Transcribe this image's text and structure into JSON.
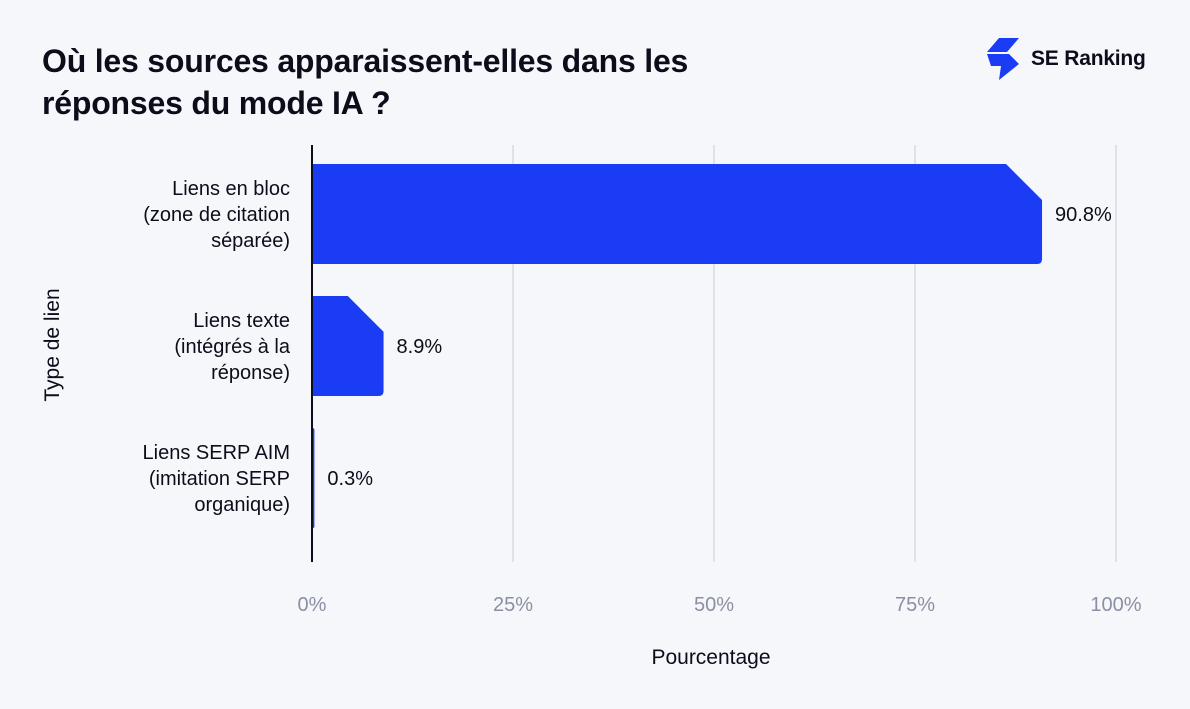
{
  "title": "Où les sources apparaissent-elles dans les réponses du mode IA ?",
  "brand": {
    "name": "SE Ranking",
    "logo_icon": "lightning-bolt-icon",
    "color": "#1b3cf5"
  },
  "colors": {
    "bar": "#1b3cf5",
    "grid": "#d8dce6",
    "axis": "#0c0d1a",
    "background": "#f6f7fb"
  },
  "chart_data": {
    "type": "bar",
    "orientation": "horizontal",
    "title": "Où les sources apparaissent-elles dans les réponses du mode IA ?",
    "xlabel": "Pourcentage",
    "ylabel": "Type de lien",
    "xlim": [
      0,
      100
    ],
    "x_ticks": [
      "0%",
      "25%",
      "50%",
      "75%",
      "100%"
    ],
    "grid": "vertical",
    "legend": "none",
    "categories": [
      [
        "Liens en bloc",
        "(zone de citation",
        "séparée)"
      ],
      [
        "Liens texte",
        "(intégrés à la",
        "réponse)"
      ],
      [
        "Liens SERP AIM",
        "(imitation SERP",
        "organique)"
      ]
    ],
    "values": [
      90.8,
      8.9,
      0.3
    ],
    "value_labels": [
      "90.8%",
      "8.9%",
      "0.3%"
    ]
  }
}
